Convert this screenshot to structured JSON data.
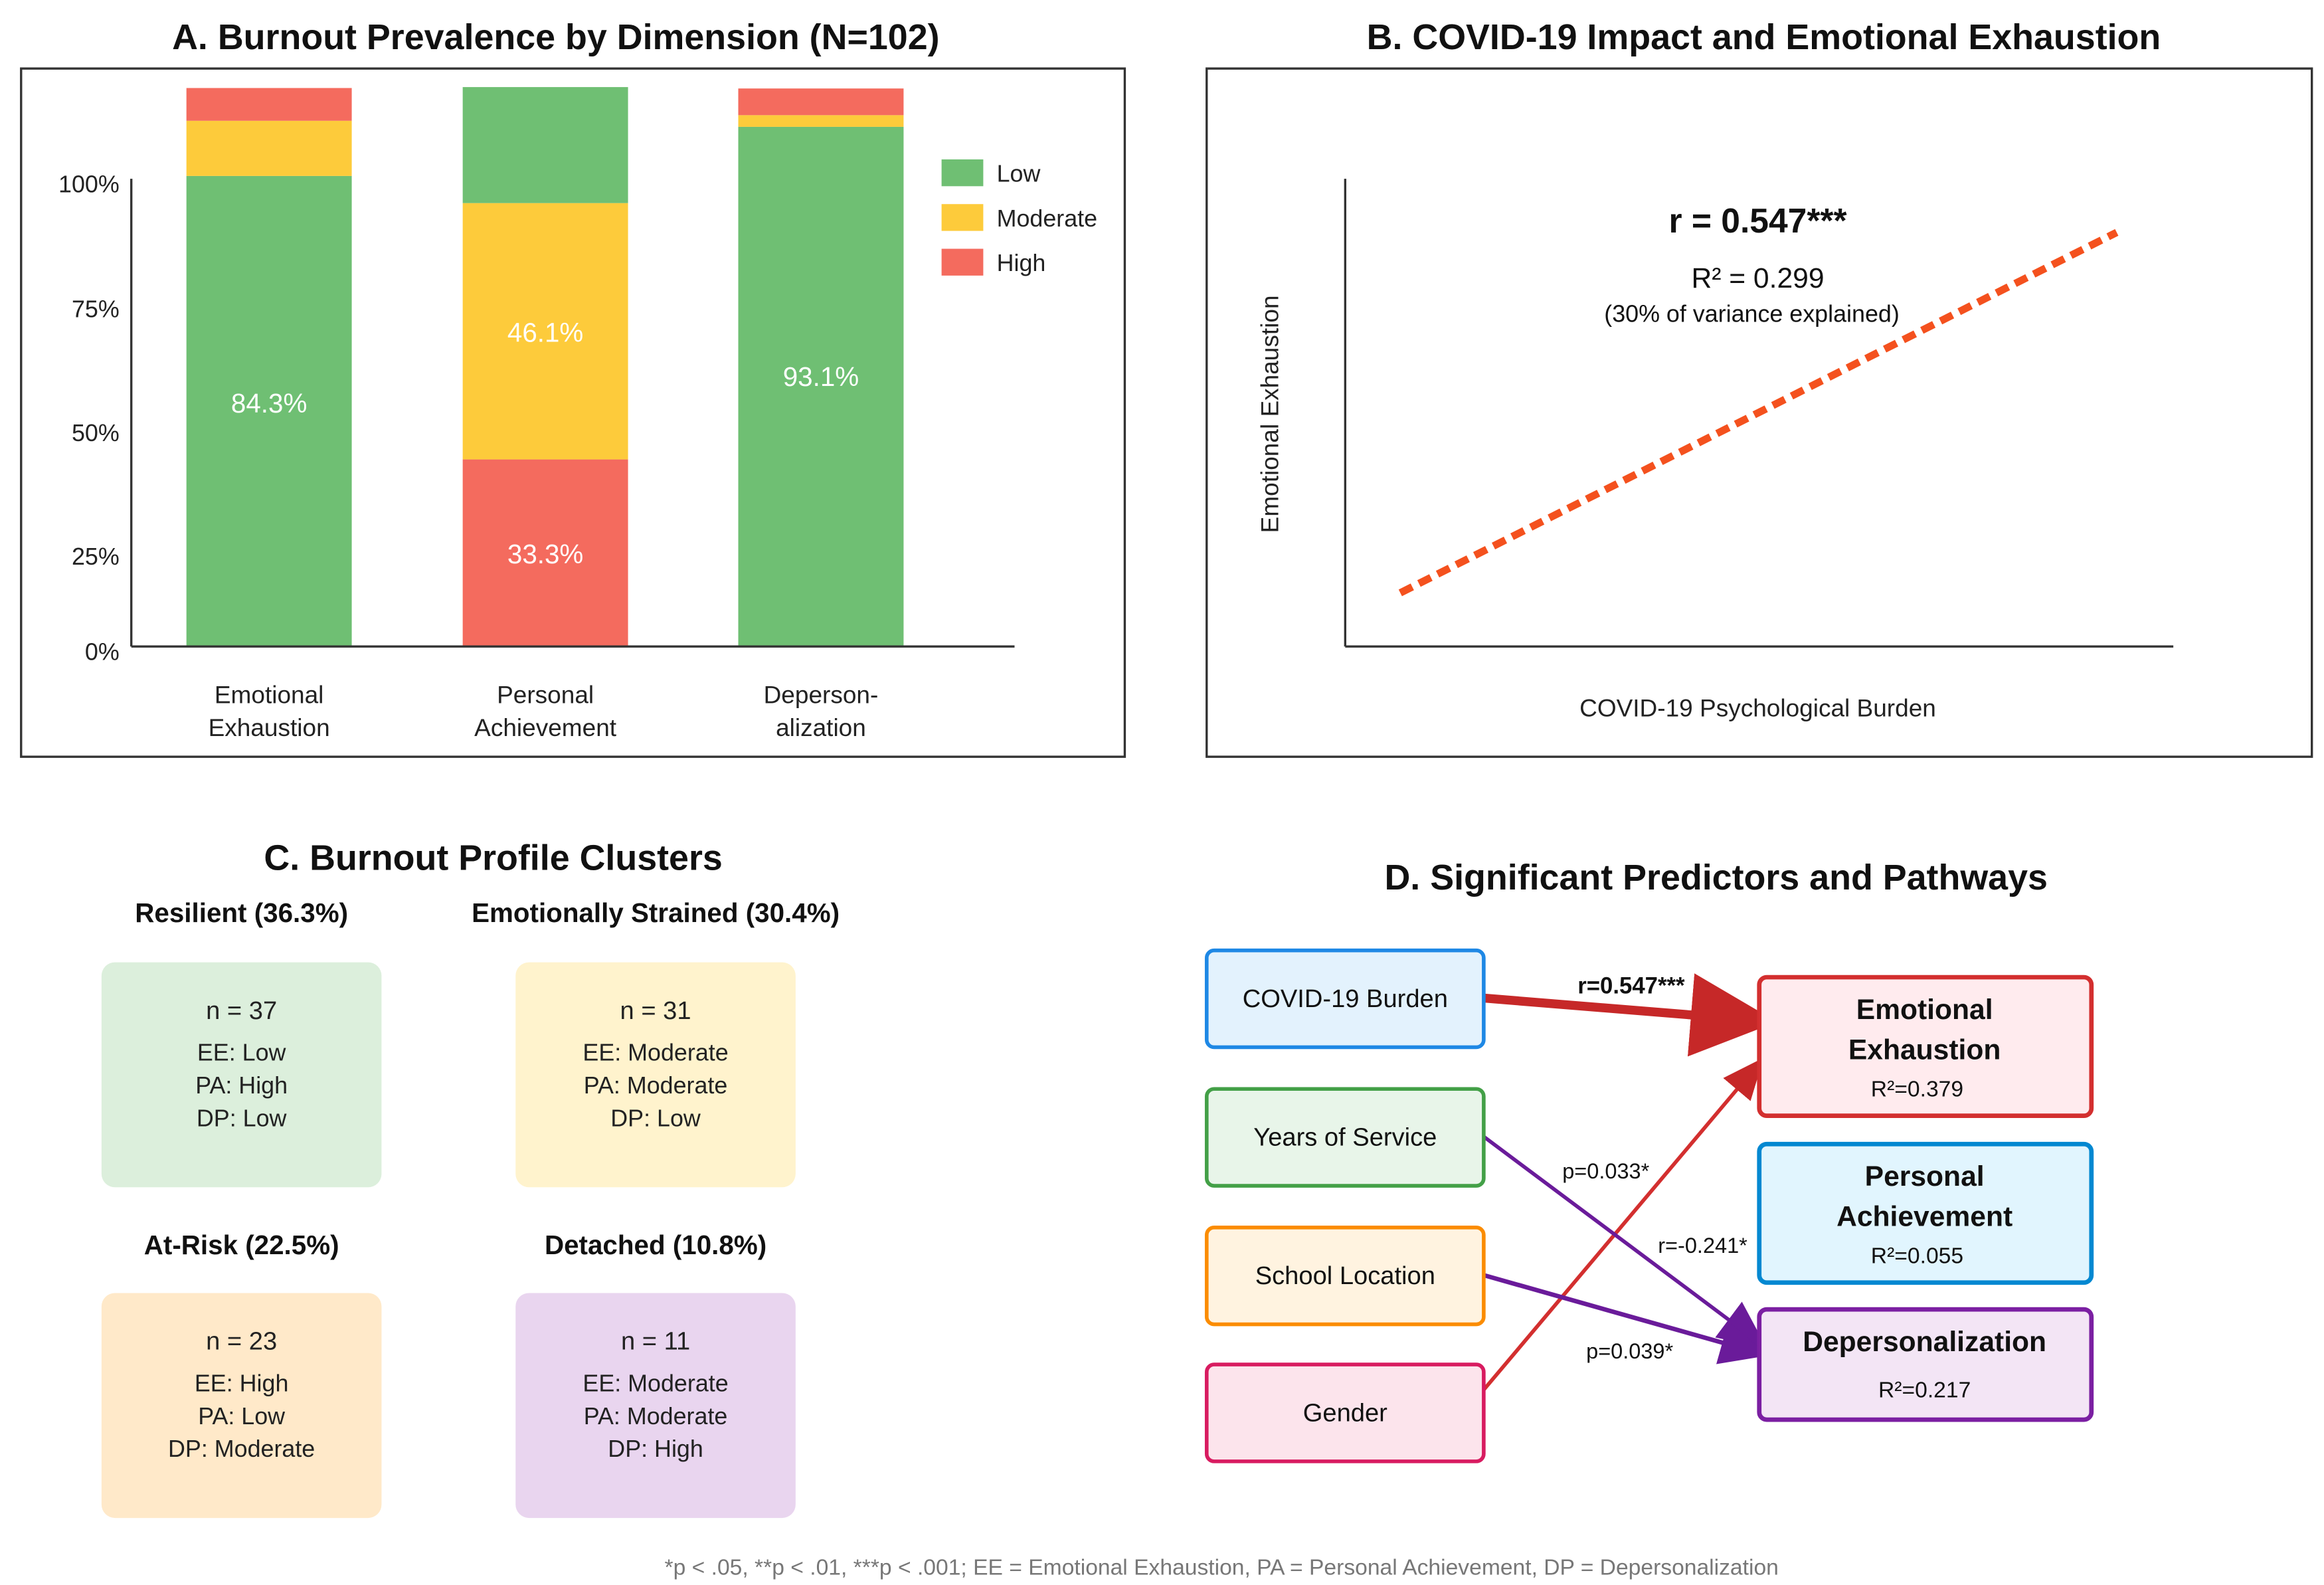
{
  "chart_data": [
    {
      "type": "bar",
      "stacked": true,
      "title": "A. Burnout Prevalence by Dimension (N=102)",
      "categories": [
        "Emotional\nExhaustion",
        "Personal\nAchievement",
        "Deperson-\nalization"
      ],
      "category_lines": [
        [
          "Emotional",
          "Exhaustion"
        ],
        [
          "Personal",
          "Achievement"
        ],
        [
          "Deperson-",
          "alization"
        ]
      ],
      "yticks": [
        "0%",
        "25%",
        "50%",
        "75%",
        "100%"
      ],
      "ylim": [
        0,
        100
      ],
      "legend": {
        "position": "top-right",
        "entries": [
          "Low",
          "Moderate",
          "High"
        ]
      },
      "colors": {
        "Low": "#6fbf73",
        "Moderate": "#fdcb3b",
        "High": "#f46b5e"
      },
      "stacks": [
        [
          {
            "level": "Low",
            "value": 100.6,
            "label": "84.3%"
          },
          {
            "level": "Moderate",
            "value": 11.8,
            "label": ""
          },
          {
            "level": "High",
            "value": 7.0,
            "label": ""
          }
        ],
        [
          {
            "level": "High",
            "value": 40.0,
            "label": "33.3%"
          },
          {
            "level": "Moderate",
            "value": 54.8,
            "label": "46.1%"
          },
          {
            "level": "Low",
            "value": 24.8,
            "label": ""
          }
        ],
        [
          {
            "level": "Low",
            "value": 111.1,
            "label": "93.1%"
          },
          {
            "level": "Moderate",
            "value": 2.5,
            "label": ""
          },
          {
            "level": "High",
            "value": 5.7,
            "label": ""
          }
        ]
      ]
    },
    {
      "type": "line",
      "title": "B. COVID-19 Impact and Emotional Exhaustion",
      "xlabel": "COVID-19 Psychological Burden",
      "ylabel": "Emotional Exhaustion",
      "series": [
        {
          "name": "fit",
          "style": "dashed",
          "color": "#f4511e",
          "x": [
            0,
            1
          ],
          "y": [
            0,
            1
          ]
        }
      ],
      "annotations": [
        "r = 0.547***",
        "R² = 0.299",
        "(30% of variance explained)"
      ]
    }
  ],
  "panel_c": {
    "title": "C. Burnout Profile Clusters",
    "clusters": [
      {
        "title": "Resilient (36.3%)",
        "n": "n = 37",
        "lines": [
          "EE: Low",
          "PA: High",
          "DP: Low"
        ],
        "fill": "#dcefdc"
      },
      {
        "title": "Emotionally Strained (30.4%)",
        "n": "n = 31",
        "lines": [
          "EE: Moderate",
          "PA: Moderate",
          "DP: Low"
        ],
        "fill": "#fff3cd"
      },
      {
        "title": "At-Risk (22.5%)",
        "n": "n = 23",
        "lines": [
          "EE: High",
          "PA: Low",
          "DP: Moderate"
        ],
        "fill": "#ffe9c9"
      },
      {
        "title": "Detached (10.8%)",
        "n": "n = 11",
        "lines": [
          "EE: Moderate",
          "PA: Moderate",
          "DP: High"
        ],
        "fill": "#e9d5ef"
      }
    ]
  },
  "panel_d": {
    "title": "D. Significant Predictors and Pathways",
    "predictors": [
      {
        "label": "COVID-19 Burden",
        "stroke": "#1e88e5",
        "fill": "#e3f2fd"
      },
      {
        "label": "Years of Service",
        "stroke": "#43a047",
        "fill": "#e8f5e9"
      },
      {
        "label": "School Location",
        "stroke": "#fb8c00",
        "fill": "#fff3e0"
      },
      {
        "label": "Gender",
        "stroke": "#d81b60",
        "fill": "#fce4ec"
      }
    ],
    "outcomes": [
      {
        "line1": "Emotional",
        "line2": "Exhaustion",
        "r2": "R²=0.379",
        "stroke": "#d32f2f",
        "fill": "#ffebee"
      },
      {
        "line1": "Personal",
        "line2": "Achievement",
        "r2": "R²=0.055",
        "stroke": "#0288d1",
        "fill": "#e1f5fe"
      },
      {
        "line1": "Depersonalization",
        "line2": "",
        "r2": "R²=0.217",
        "stroke": "#7b1fa2",
        "fill": "#f3e5f5"
      }
    ],
    "edge_labels": {
      "covid_ee": "r=0.547***",
      "years_dp": "p=0.033*",
      "gender_ee": "r=-0.241*",
      "school_dp": "p=0.039*"
    }
  },
  "footnote": "*p < .05, **p < .01, ***p < .001; EE = Emotional Exhaustion, PA = Personal Achievement, DP = Depersonalization"
}
